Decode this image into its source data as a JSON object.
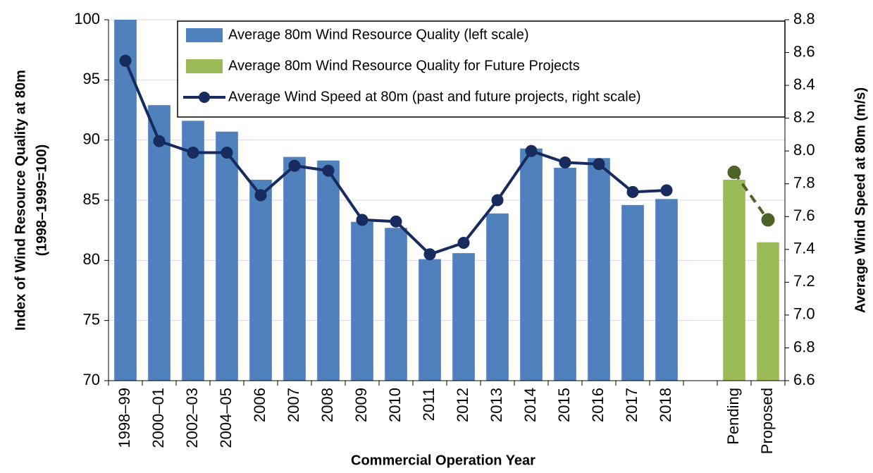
{
  "chart_data": {
    "type": "bar",
    "categories": [
      "1998–99",
      "2000–01",
      "2002–03",
      "2004–05",
      "2006",
      "2007",
      "2008",
      "2009",
      "2010",
      "2011",
      "2012",
      "2013",
      "2014",
      "2015",
      "2016",
      "2017",
      "2018",
      null,
      "Pending",
      "Proposed"
    ],
    "x_label": "Commercial Operation Year",
    "y_label": [
      "Index of Wind Resource Quality at 80m",
      "(1998–1999=100)"
    ],
    "y2_label": "Average Wind Speed at 80m (m/s)",
    "ylim": [
      70,
      100
    ],
    "yticks": [
      70,
      75,
      80,
      85,
      90,
      95,
      100
    ],
    "y2lim": [
      6.6,
      8.8
    ],
    "y2ticks": [
      6.6,
      6.8,
      {
        "value": 7,
        "label": "7.0"
      },
      7.2,
      7.4,
      7.6,
      7.8,
      {
        "value": 8,
        "label": "8.0"
      },
      8.2,
      8.4,
      8.6,
      8.8
    ],
    "grid": true,
    "legend": "top-right",
    "series": [
      {
        "name": "Average 80m Wind Resource Quality (left scale)",
        "type": "bar",
        "color": "#4f81bd",
        "values": [
          100,
          92.9,
          91.6,
          90.7,
          86.7,
          88.6,
          88.3,
          83.2,
          82.7,
          80.1,
          80.6,
          83.9,
          89.3,
          87.7,
          88.5,
          84.6,
          85.1,
          null,
          null,
          null
        ]
      },
      {
        "name": "Average 80m Wind Resource Quality for Future Projects",
        "type": "bar",
        "color": "#9bbb59",
        "values": [
          null,
          null,
          null,
          null,
          null,
          null,
          null,
          null,
          null,
          null,
          null,
          null,
          null,
          null,
          null,
          null,
          null,
          null,
          86.7,
          81.5
        ]
      },
      {
        "name": "Average Wind Speed at 80m (past and future projects, right scale)",
        "type": "line",
        "axis": "y2",
        "color": "#172b5e",
        "values": [
          8.55,
          8.06,
          7.99,
          7.99,
          7.73,
          7.91,
          7.88,
          7.58,
          7.57,
          7.37,
          7.44,
          7.7,
          8.0,
          7.93,
          7.92,
          7.75,
          7.76,
          null,
          null,
          null
        ]
      },
      {
        "type": "line",
        "axis": "y2",
        "color": "#4f6228",
        "dash": true,
        "values": [
          null,
          null,
          null,
          null,
          null,
          null,
          null,
          null,
          null,
          null,
          null,
          null,
          null,
          null,
          null,
          null,
          null,
          null,
          7.87,
          7.58
        ]
      }
    ]
  }
}
